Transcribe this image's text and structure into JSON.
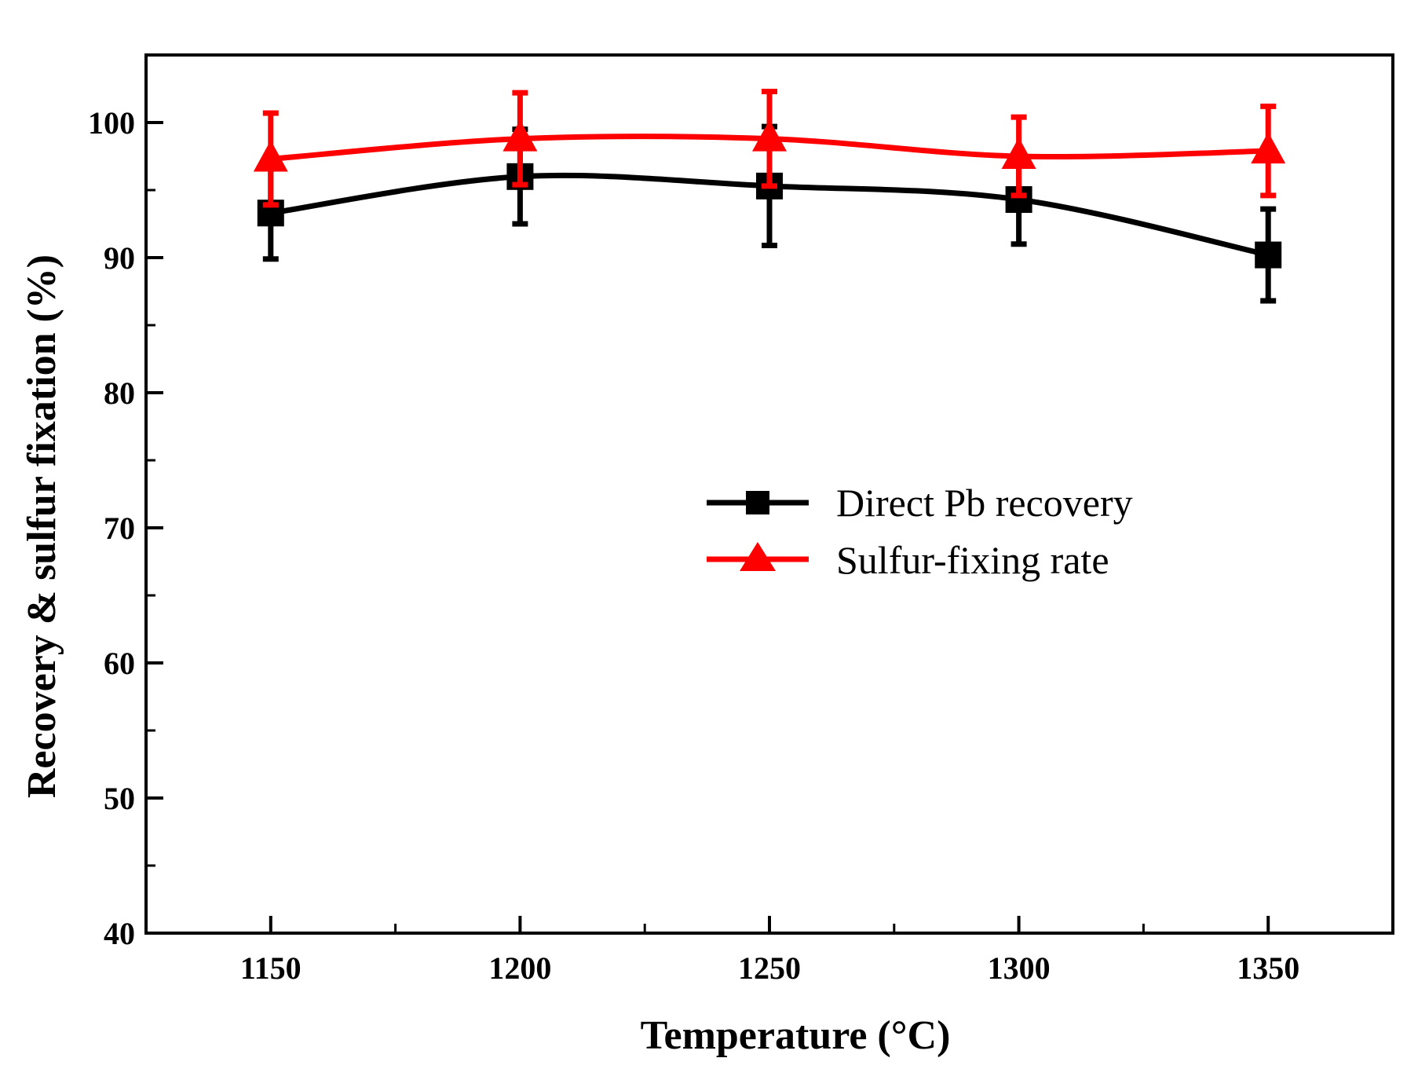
{
  "chart_data": {
    "type": "line",
    "title": "",
    "xlabel": "Temperature (°C)",
    "ylabel": "Recovery & sulfur fixation (%)",
    "x": [
      1150,
      1200,
      1250,
      1300,
      1350
    ],
    "x_ticks": [
      "1150",
      "1200",
      "1250",
      "1300",
      "1350"
    ],
    "xlim": [
      1125,
      1375
    ],
    "ylim": [
      40,
      105
    ],
    "y_ticks": [
      "40",
      "50",
      "60",
      "70",
      "80",
      "90",
      "100"
    ],
    "y_tick_values": [
      40,
      50,
      60,
      70,
      80,
      90,
      100
    ],
    "grid": false,
    "legend_position": "center-right",
    "series": [
      {
        "name": "Direct Pb recovery",
        "color": "#000000",
        "marker": "square",
        "values": [
          93.3,
          96.0,
          95.3,
          94.3,
          90.2
        ],
        "error": [
          3.4,
          3.5,
          4.4,
          3.3,
          3.4
        ]
      },
      {
        "name": "Sulfur-fixing rate",
        "color": "#ff0000",
        "marker": "triangle",
        "values": [
          97.3,
          98.8,
          98.8,
          97.5,
          97.9
        ],
        "error": [
          3.4,
          3.4,
          3.5,
          2.9,
          3.3
        ]
      }
    ]
  }
}
